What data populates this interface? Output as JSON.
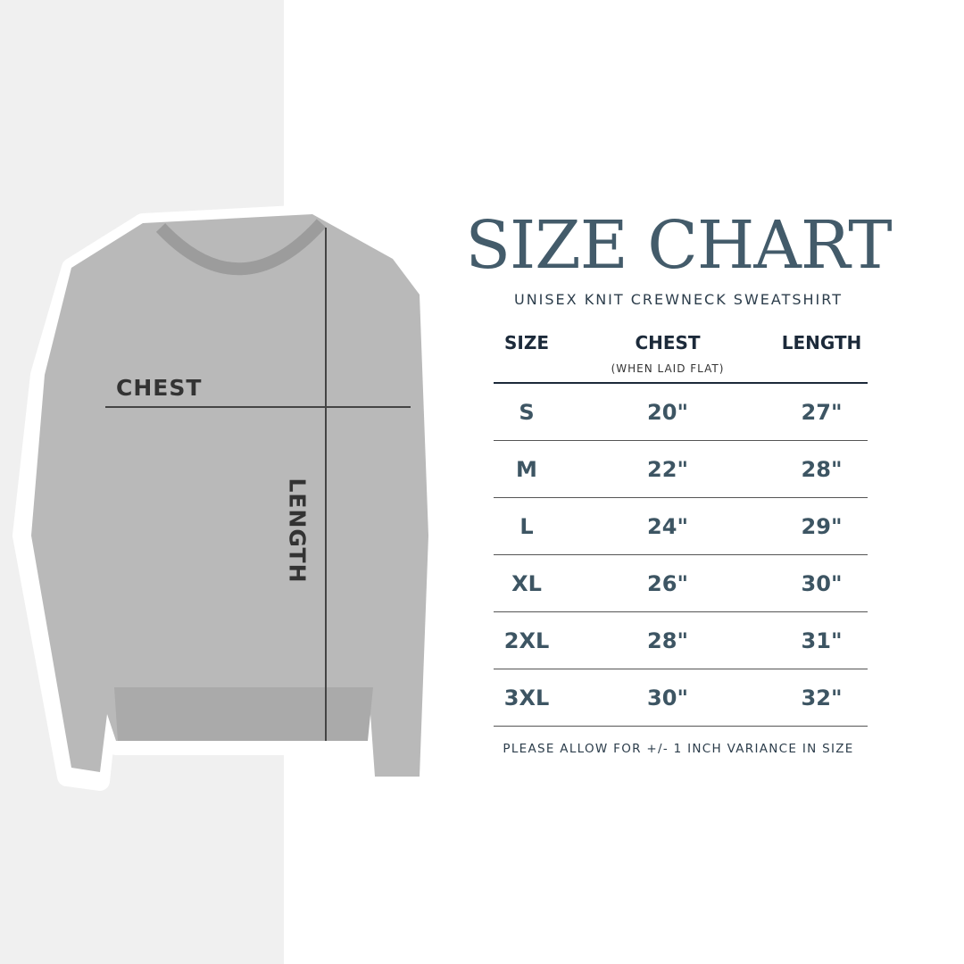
{
  "diagram": {
    "chest_label": "CHEST",
    "length_label": "LENGTH"
  },
  "title": "SIZE CHART",
  "subtitle": "UNISEX KNIT CREWNECK SWEATSHIRT",
  "table": {
    "headers": {
      "size": "SIZE",
      "chest": "CHEST",
      "chest_note": "(WHEN LAID FLAT)",
      "length": "LENGTH"
    },
    "rows": [
      {
        "size": "S",
        "chest": "20\"",
        "length": "27\""
      },
      {
        "size": "M",
        "chest": "22\"",
        "length": "28\""
      },
      {
        "size": "L",
        "chest": "24\"",
        "length": "29\""
      },
      {
        "size": "XL",
        "chest": "26\"",
        "length": "30\""
      },
      {
        "size": "2XL",
        "chest": "28\"",
        "length": "31\""
      },
      {
        "size": "3XL",
        "chest": "30\"",
        "length": "32\""
      }
    ]
  },
  "footer": "PLEASE ALLOW FOR +/- 1 INCH VARIANCE IN SIZE",
  "colors": {
    "title": "#435b6a",
    "header": "#1c2a3a",
    "values": "#3d5563",
    "panel": "#f0f0f0"
  }
}
